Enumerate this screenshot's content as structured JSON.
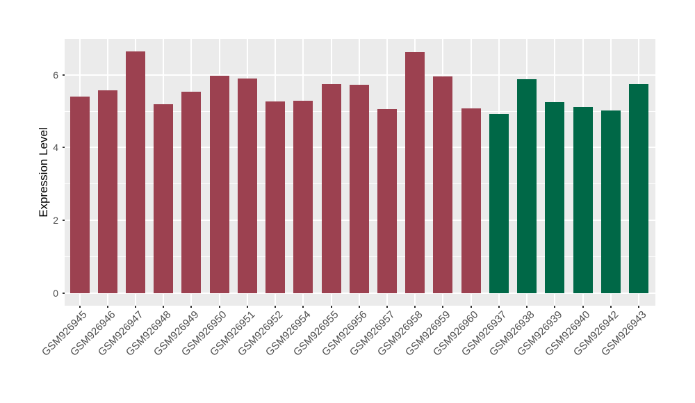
{
  "chart_data": {
    "type": "bar",
    "title": "",
    "xlabel": "",
    "ylabel": "Expression Level",
    "categories": [
      "GSM926945",
      "GSM926946",
      "GSM926947",
      "GSM926948",
      "GSM926949",
      "GSM926950",
      "GSM926951",
      "GSM926952",
      "GSM926954",
      "GSM926955",
      "GSM926956",
      "GSM926957",
      "GSM926958",
      "GSM926959",
      "GSM926960",
      "GSM926937",
      "GSM926938",
      "GSM926939",
      "GSM926940",
      "GSM926942",
      "GSM926943"
    ],
    "values": [
      5.41,
      5.57,
      6.65,
      5.2,
      5.53,
      5.98,
      5.9,
      5.26,
      5.28,
      5.75,
      5.72,
      5.05,
      6.62,
      5.96,
      5.07,
      4.93,
      5.88,
      5.24,
      5.12,
      5.01,
      5.74
    ],
    "bar_colors": [
      "#9C4150",
      "#9C4150",
      "#9C4150",
      "#9C4150",
      "#9C4150",
      "#9C4150",
      "#9C4150",
      "#9C4150",
      "#9C4150",
      "#9C4150",
      "#9C4150",
      "#9C4150",
      "#9C4150",
      "#9C4150",
      "#9C4150",
      "#006847",
      "#006847",
      "#006847",
      "#006847",
      "#006847",
      "#006847"
    ],
    "color_groups": [
      {
        "color": "#9C4150",
        "count": 15
      },
      {
        "color": "#006847",
        "count": 6
      }
    ],
    "y_ticks": [
      0,
      2,
      4,
      6
    ],
    "y_minor_gridlines": [
      1,
      3,
      5
    ],
    "ylim": [
      -0.33,
      6.97
    ],
    "x_tick_rotation_deg": 45,
    "legend_position": "none",
    "grid": true,
    "panel_background": "#EBEBEB",
    "gridline_color": "#FFFFFF",
    "axis_text_color": "#4D4D4D"
  }
}
